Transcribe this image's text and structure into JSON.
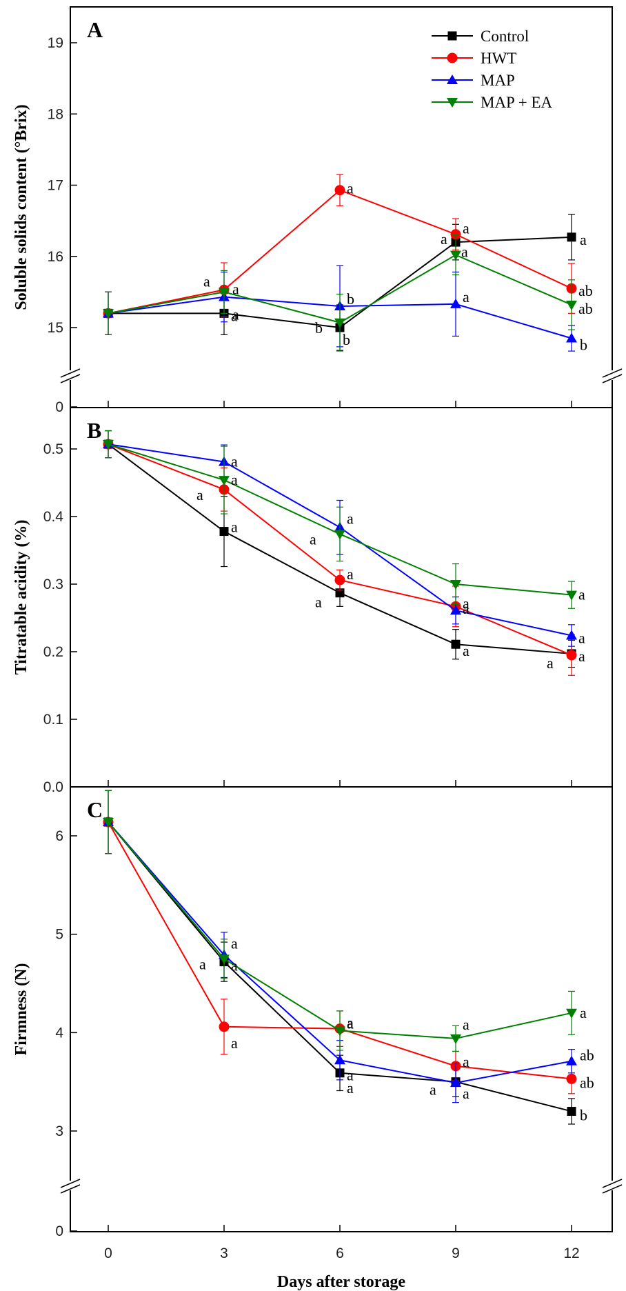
{
  "chart_data": [
    {
      "type": "line",
      "panel": "A",
      "ylabel": "Soluble solids content (°Brix)",
      "xlabel": "",
      "x": [
        0,
        3,
        6,
        9,
        12
      ],
      "ylim": [
        15,
        19.5
      ],
      "axis_break": true,
      "yticks": [
        15,
        16,
        17,
        18,
        19
      ],
      "below_break_tick": 0,
      "legend_position": "top-right",
      "series": [
        {
          "name": "Control",
          "color": "#000000",
          "marker": "square",
          "values": [
            15.2,
            15.2,
            15.0,
            16.2,
            16.27
          ],
          "err": [
            0.3,
            0.3,
            0.32,
            0.25,
            0.32
          ],
          "letters": [
            "",
            "a",
            "b",
            "a",
            "a"
          ]
        },
        {
          "name": "HWT",
          "color": "#ff0000",
          "marker": "circle",
          "values": [
            15.2,
            15.53,
            16.93,
            16.31,
            15.55
          ],
          "err": [
            0.3,
            0.38,
            0.22,
            0.22,
            0.35
          ],
          "letters": [
            "",
            "a",
            "a",
            "a",
            "ab"
          ]
        },
        {
          "name": "MAP",
          "color": "#0000ff",
          "marker": "triangle-up",
          "values": [
            15.2,
            15.43,
            15.3,
            15.33,
            14.85
          ],
          "err": [
            0.3,
            0.35,
            0.57,
            0.45,
            0.18
          ],
          "letters": [
            "",
            "a",
            "b",
            "a",
            "b"
          ]
        },
        {
          "name": "MAP + EA",
          "color": "#008000",
          "marker": "triangle-down",
          "values": [
            15.2,
            15.5,
            15.07,
            16.02,
            15.32
          ],
          "err": [
            0.3,
            0.3,
            0.4,
            0.28,
            0.35
          ],
          "letters": [
            "",
            "a",
            "b",
            "a",
            "ab"
          ]
        }
      ]
    },
    {
      "type": "line",
      "panel": "B",
      "ylabel": "Titratable acidity (%)",
      "xlabel": "",
      "x": [
        0,
        3,
        6,
        9,
        12
      ],
      "ylim": [
        0,
        0.55
      ],
      "yticks": [
        0.0,
        0.1,
        0.2,
        0.3,
        0.4,
        0.5
      ],
      "ytick_labels": [
        "0.0",
        "0.1",
        "0.2",
        "0.3",
        "0.4",
        "0.5"
      ],
      "series": [
        {
          "name": "Control",
          "color": "#000000",
          "marker": "square",
          "values": [
            0.507,
            0.378,
            0.287,
            0.211,
            0.197
          ],
          "err": [
            0.02,
            0.052,
            0.02,
            0.022,
            0.02
          ],
          "letters": [
            "",
            "a",
            "a",
            "a",
            "a"
          ]
        },
        {
          "name": "HWT",
          "color": "#ff0000",
          "marker": "circle",
          "values": [
            0.507,
            0.44,
            0.306,
            0.267,
            0.195
          ],
          "err": [
            0.02,
            0.032,
            0.015,
            0.03,
            0.03
          ],
          "letters": [
            "",
            "a",
            "a",
            "a",
            "a"
          ]
        },
        {
          "name": "MAP",
          "color": "#0000ff",
          "marker": "triangle-up",
          "values": [
            0.507,
            0.481,
            0.384,
            0.261,
            0.224
          ],
          "err": [
            0.02,
            0.025,
            0.04,
            0.02,
            0.016
          ],
          "letters": [
            "",
            "a",
            "a",
            "a",
            "a"
          ]
        },
        {
          "name": "MAP + EA",
          "color": "#008000",
          "marker": "triangle-down",
          "values": [
            0.507,
            0.454,
            0.374,
            0.3,
            0.284
          ],
          "err": [
            0.02,
            0.05,
            0.04,
            0.03,
            0.02
          ],
          "letters": [
            "",
            "a",
            "a",
            "a",
            "a"
          ]
        }
      ]
    },
    {
      "type": "line",
      "panel": "C",
      "ylabel": "Firmness (N)",
      "xlabel": "Days after storage",
      "x": [
        0,
        3,
        6,
        9,
        12
      ],
      "xticks": [
        "0",
        "3",
        "6",
        "9",
        "12"
      ],
      "ylim": [
        3,
        6.7
      ],
      "axis_break": true,
      "yticks": [
        3,
        4,
        5,
        6
      ],
      "below_break_tick": 0,
      "series": [
        {
          "name": "Control",
          "color": "#000000",
          "marker": "square",
          "values": [
            6.14,
            4.72,
            3.59,
            3.5,
            3.2
          ],
          "err": [
            0.32,
            0.2,
            0.18,
            0.15,
            0.13
          ],
          "letters": [
            "",
            "a",
            "a",
            "a",
            "b"
          ]
        },
        {
          "name": "HWT",
          "color": "#ff0000",
          "marker": "circle",
          "values": [
            6.14,
            4.06,
            4.04,
            3.66,
            3.53
          ],
          "err": [
            0.32,
            0.28,
            0.18,
            0.15,
            0.15
          ],
          "letters": [
            "",
            "a",
            "a",
            "a",
            "ab"
          ]
        },
        {
          "name": "MAP",
          "color": "#0000ff",
          "marker": "triangle-up",
          "values": [
            6.14,
            4.79,
            3.72,
            3.49,
            3.71
          ],
          "err": [
            0.32,
            0.23,
            0.2,
            0.2,
            0.12
          ],
          "letters": [
            "",
            "a",
            "a",
            "a",
            "ab"
          ]
        },
        {
          "name": "MAP + EA",
          "color": "#008000",
          "marker": "triangle-down",
          "values": [
            6.14,
            4.75,
            4.02,
            3.94,
            4.2
          ],
          "err": [
            0.32,
            0.2,
            0.2,
            0.13,
            0.22
          ],
          "letters": [
            "",
            "a",
            "a",
            "a",
            "a"
          ]
        }
      ]
    }
  ]
}
